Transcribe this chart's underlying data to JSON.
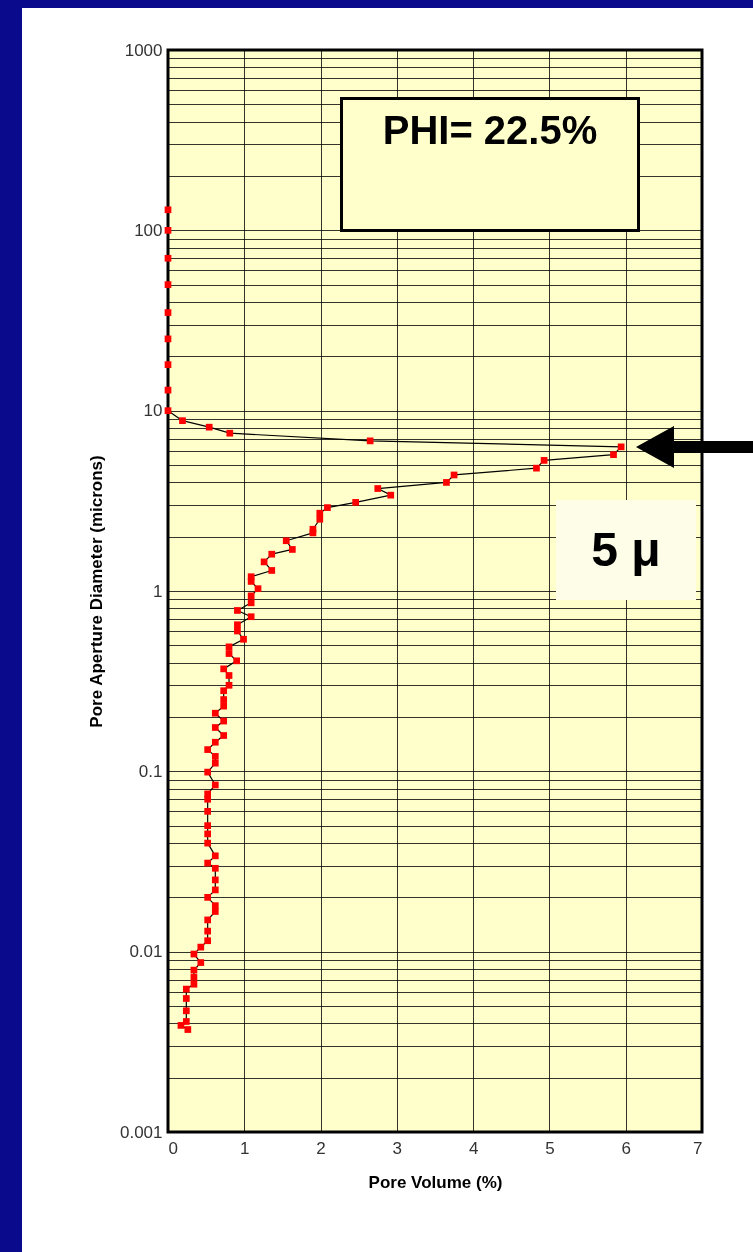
{
  "chart_data": {
    "type": "line",
    "xlabel": "Pore Volume (%)",
    "ylabel": "Pore Aperture Diameter (microns)",
    "annotations": [
      "PHI= 22.5%",
      "5 μ"
    ],
    "x": [
      0,
      0,
      0,
      0,
      0,
      0,
      0,
      0,
      0,
      0.19,
      0.54,
      0.81,
      2.65,
      5.94,
      5.84,
      4.93,
      4.83,
      3.75,
      3.65,
      2.75,
      2.92,
      2.46,
      2.09,
      1.99,
      1.99,
      1.9,
      1.9,
      1.55,
      1.63,
      1.36,
      1.26,
      1.36,
      1.09,
      1.09,
      1.18,
      1.09,
      1.09,
      0.91,
      1.09,
      0.91,
      0.91,
      0.99,
      0.8,
      0.8,
      0.9,
      0.73,
      0.8,
      0.8,
      0.73,
      0.73,
      0.73,
      0.62,
      0.73,
      0.62,
      0.73,
      0.62,
      0.52,
      0.62,
      0.62,
      0.52,
      0.62,
      0.52,
      0.52,
      0.52,
      0.52,
      0.52,
      0.52,
      0.62,
      0.52,
      0.62,
      0.62,
      0.62,
      0.52,
      0.62,
      0.62,
      0.52,
      0.52,
      0.52,
      0.43,
      0.34,
      0.43,
      0.34,
      0.34,
      0.34,
      0.24,
      0.24,
      0.24,
      0.24,
      0.17,
      0.26
    ],
    "series": [
      {
        "color": "#ff0000",
        "values": [
          130,
          100,
          70,
          50,
          35,
          25,
          18,
          13,
          10,
          8.8,
          8.1,
          7.5,
          6.8,
          6.3,
          5.7,
          5.3,
          4.8,
          4.4,
          4.0,
          3.7,
          3.4,
          3.1,
          2.9,
          2.7,
          2.5,
          2.2,
          2.1,
          1.9,
          1.7,
          1.6,
          1.45,
          1.3,
          1.2,
          1.13,
          1.03,
          0.94,
          0.86,
          0.78,
          0.72,
          0.65,
          0.6,
          0.54,
          0.49,
          0.45,
          0.41,
          0.37,
          0.34,
          0.3,
          0.28,
          0.25,
          0.23,
          0.21,
          0.19,
          0.175,
          0.158,
          0.145,
          0.132,
          0.121,
          0.111,
          0.099,
          0.084,
          0.075,
          0.07,
          0.06,
          0.05,
          0.045,
          0.04,
          0.034,
          0.031,
          0.029,
          0.025,
          0.022,
          0.02,
          0.018,
          0.0167,
          0.015,
          0.013,
          0.0115,
          0.0106,
          0.0097,
          0.0087,
          0.0079,
          0.0072,
          0.0066,
          0.0062,
          0.0055,
          0.0047,
          0.0041,
          0.0039,
          0.0037
        ]
      }
    ],
    "xlim": [
      0,
      7
    ],
    "xticks": [
      0,
      1,
      2,
      3,
      4,
      5,
      6,
      7
    ],
    "ylim": [
      0.001,
      1000
    ],
    "yticks": [
      0.001,
      0.01,
      0.1,
      1,
      10,
      100,
      1000
    ],
    "log": "y",
    "grid": true,
    "marker": "square",
    "line_style": "solid"
  }
}
